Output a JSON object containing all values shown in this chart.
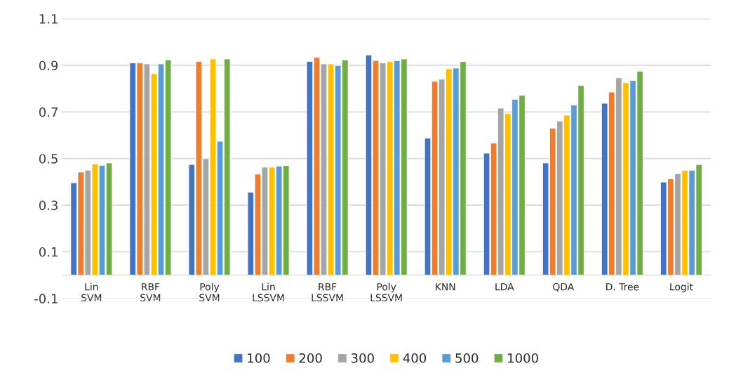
{
  "chart_data": {
    "type": "bar",
    "categories": [
      "Lin\nSVM",
      "RBF\nSVM",
      "Poly\nSVM",
      "Lin\nLSSVM",
      "RBF\nLSSVM",
      "Poly\nLSSVM",
      "KNN",
      "LDA",
      "QDA",
      "D. Tree",
      "Logit"
    ],
    "series": [
      {
        "name": "100",
        "color": "#4472c4",
        "values": [
          0.396,
          0.91,
          0.474,
          0.355,
          0.916,
          0.944,
          0.587,
          0.523,
          0.481,
          0.737,
          0.399
        ]
      },
      {
        "name": "200",
        "color": "#ed7d31",
        "values": [
          0.442,
          0.91,
          0.916,
          0.433,
          0.934,
          0.92,
          0.831,
          0.566,
          0.63,
          0.785,
          0.413
        ]
      },
      {
        "name": "300",
        "color": "#a5a5a5",
        "values": [
          0.45,
          0.906,
          0.499,
          0.463,
          0.906,
          0.91,
          0.84,
          0.716,
          0.661,
          0.846,
          0.435
        ]
      },
      {
        "name": "400",
        "color": "#ffc000",
        "values": [
          0.477,
          0.864,
          0.927,
          0.463,
          0.906,
          0.916,
          0.885,
          0.693,
          0.686,
          0.825,
          0.449
        ]
      },
      {
        "name": "500",
        "color": "#5b9bd5",
        "values": [
          0.471,
          0.906,
          0.574,
          0.467,
          0.899,
          0.92,
          0.888,
          0.754,
          0.729,
          0.835,
          0.449
        ]
      },
      {
        "name": "1000",
        "color": "#70ad47",
        "values": [
          0.481,
          0.923,
          0.927,
          0.47,
          0.923,
          0.927,
          0.916,
          0.771,
          0.813,
          0.874,
          0.474
        ]
      }
    ],
    "ylim": [
      -0.1,
      1.1
    ],
    "yticks": [
      -0.1,
      0.1,
      0.3,
      0.5,
      0.7,
      0.9,
      1.1
    ],
    "grid": "y",
    "legend": "bottom"
  }
}
